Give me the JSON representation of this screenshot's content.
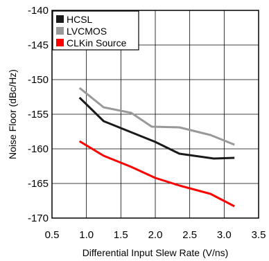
{
  "chart_data": {
    "type": "line",
    "title": "",
    "xlabel": "Differential Input Slew Rate (V/ns)",
    "ylabel": "Noise Floor (dBc/Hz)",
    "xlim": [
      0.5,
      3.5
    ],
    "ylim": [
      -170,
      -140
    ],
    "xticks": [
      "0.5",
      "1.0",
      "1.5",
      "2.0",
      "2.5",
      "3.0",
      "3.5"
    ],
    "yticks": [
      "-140",
      "-145",
      "-150",
      "-155",
      "-160",
      "-165",
      "-170"
    ],
    "grid": true,
    "legend_position": "top-left",
    "series": [
      {
        "name": "HCSL",
        "color": "#1a1a1a",
        "x": [
          0.9,
          1.25,
          1.65,
          2.0,
          2.35,
          2.85,
          3.15
        ],
        "y": [
          -152.6,
          -156.0,
          -157.6,
          -159.0,
          -160.7,
          -161.4,
          -161.3
        ]
      },
      {
        "name": "LVCMOS",
        "color": "#999999",
        "x": [
          0.9,
          1.25,
          1.65,
          1.95,
          2.35,
          2.8,
          3.15
        ],
        "y": [
          -151.2,
          -154.0,
          -154.8,
          -156.8,
          -156.9,
          -158.0,
          -159.4
        ]
      },
      {
        "name": "CLKin Source",
        "color": "#ff0000",
        "x": [
          0.9,
          1.25,
          1.65,
          2.0,
          2.35,
          2.8,
          3.15
        ],
        "y": [
          -158.9,
          -161.0,
          -162.6,
          -164.2,
          -165.3,
          -166.5,
          -168.3
        ]
      }
    ]
  }
}
